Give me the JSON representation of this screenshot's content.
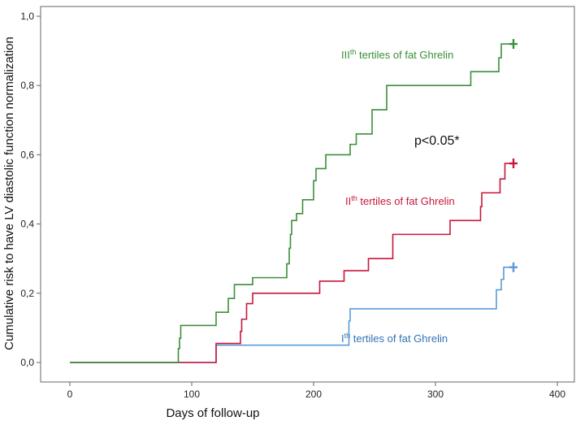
{
  "chart_data": {
    "type": "line",
    "title": "",
    "xlabel": "Days of follow-up",
    "ylabel": "Cumulative risk to have LV diastolic function normalization",
    "xlim": [
      0,
      400
    ],
    "ylim": [
      0,
      1.0
    ],
    "x_ticks": [
      "0",
      "100",
      "200",
      "300",
      "400"
    ],
    "y_ticks": [
      "0,0",
      "0,2",
      "0,4",
      "0,6",
      "0,8",
      "1,0"
    ],
    "grid": false,
    "legend": "none",
    "annotation_pvalue": "p<0.05*",
    "series": [
      {
        "label_base": "III",
        "label_sup": "th",
        "label_rest": " tertiles of fat Ghrelin",
        "color": "#3a8f3a",
        "censor_x": 364,
        "points": [
          [
            0,
            0
          ],
          [
            89,
            0
          ],
          [
            89,
            0.04
          ],
          [
            90,
            0.04
          ],
          [
            90,
            0.07
          ],
          [
            91,
            0.07
          ],
          [
            91,
            0.107
          ],
          [
            120,
            0.107
          ],
          [
            120,
            0.145
          ],
          [
            130,
            0.145
          ],
          [
            130,
            0.185
          ],
          [
            135,
            0.185
          ],
          [
            135,
            0.225
          ],
          [
            150,
            0.225
          ],
          [
            150,
            0.245
          ],
          [
            178,
            0.245
          ],
          [
            178,
            0.285
          ],
          [
            180,
            0.285
          ],
          [
            180,
            0.33
          ],
          [
            181,
            0.33
          ],
          [
            181,
            0.37
          ],
          [
            182,
            0.37
          ],
          [
            182,
            0.41
          ],
          [
            186,
            0.41
          ],
          [
            186,
            0.43
          ],
          [
            191,
            0.43
          ],
          [
            191,
            0.47
          ],
          [
            200,
            0.47
          ],
          [
            200,
            0.525
          ],
          [
            202,
            0.525
          ],
          [
            202,
            0.56
          ],
          [
            210,
            0.56
          ],
          [
            210,
            0.6
          ],
          [
            230,
            0.6
          ],
          [
            230,
            0.63
          ],
          [
            235,
            0.63
          ],
          [
            235,
            0.66
          ],
          [
            248,
            0.66
          ],
          [
            248,
            0.73
          ],
          [
            260,
            0.73
          ],
          [
            260,
            0.8
          ],
          [
            329,
            0.8
          ],
          [
            329,
            0.84
          ],
          [
            352,
            0.84
          ],
          [
            352,
            0.88
          ],
          [
            354,
            0.88
          ],
          [
            354,
            0.92
          ],
          [
            364,
            0.92
          ]
        ]
      },
      {
        "label_base": "II",
        "label_sup": "th",
        "label_rest": " tertiles of fat Ghrelin",
        "color": "#c8173a",
        "censor_x": 364,
        "points": [
          [
            0,
            0
          ],
          [
            120,
            0
          ],
          [
            120,
            0.055
          ],
          [
            140,
            0.055
          ],
          [
            140,
            0.09
          ],
          [
            141,
            0.09
          ],
          [
            141,
            0.125
          ],
          [
            145,
            0.125
          ],
          [
            145,
            0.17
          ],
          [
            150,
            0.17
          ],
          [
            150,
            0.2
          ],
          [
            205,
            0.2
          ],
          [
            205,
            0.235
          ],
          [
            225,
            0.235
          ],
          [
            225,
            0.265
          ],
          [
            245,
            0.265
          ],
          [
            245,
            0.3
          ],
          [
            265,
            0.3
          ],
          [
            265,
            0.37
          ],
          [
            312,
            0.37
          ],
          [
            312,
            0.41
          ],
          [
            337,
            0.41
          ],
          [
            337,
            0.45
          ],
          [
            338,
            0.45
          ],
          [
            338,
            0.49
          ],
          [
            353,
            0.49
          ],
          [
            353,
            0.53
          ],
          [
            357,
            0.53
          ],
          [
            357,
            0.575
          ],
          [
            364,
            0.575
          ]
        ]
      },
      {
        "label_base": "I",
        "label_sup": "th",
        "label_rest": " tertiles of fat Ghrelin",
        "color": "#5b9bd5",
        "censor_x": 364,
        "points": [
          [
            0,
            0
          ],
          [
            120,
            0
          ],
          [
            120,
            0.05
          ],
          [
            229,
            0.05
          ],
          [
            229,
            0.12
          ],
          [
            230,
            0.12
          ],
          [
            230,
            0.155
          ],
          [
            350,
            0.155
          ],
          [
            350,
            0.21
          ],
          [
            354,
            0.21
          ],
          [
            354,
            0.24
          ],
          [
            356,
            0.24
          ],
          [
            356,
            0.275
          ],
          [
            364,
            0.275
          ]
        ]
      }
    ]
  }
}
